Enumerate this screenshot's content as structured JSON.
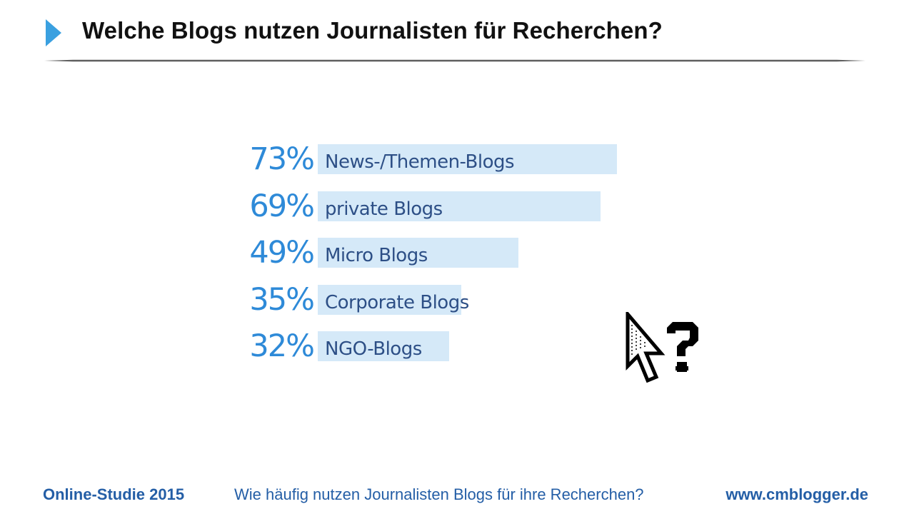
{
  "slide": {
    "title": "Welche Blogs nutzen Journalisten für Recherchen?",
    "accent_color": "#3aa0e0"
  },
  "chart_data": {
    "type": "bar",
    "orientation": "horizontal",
    "categories": [
      "News-/Themen-Blogs",
      "private Blogs",
      "Micro Blogs",
      "Corporate Blogs",
      "NGO-Blogs"
    ],
    "values": [
      73,
      69,
      49,
      35,
      32
    ],
    "value_labels": [
      "73%",
      "69%",
      "49%",
      "35%",
      "32%"
    ],
    "unit": "%",
    "xlim": [
      0,
      100
    ],
    "bar_color": "#d5e9f8",
    "label_color": "#2d4f86",
    "value_color": "#2e8ad8",
    "grid": false,
    "legend": "none"
  },
  "decoration": {
    "icon": "cursor-question-icon"
  },
  "footer": {
    "study": "Online-Studie 2015",
    "question": "Wie häufig nutzen Journalisten Blogs für ihre Recherchen?",
    "website": "www.cmblogger.de"
  }
}
